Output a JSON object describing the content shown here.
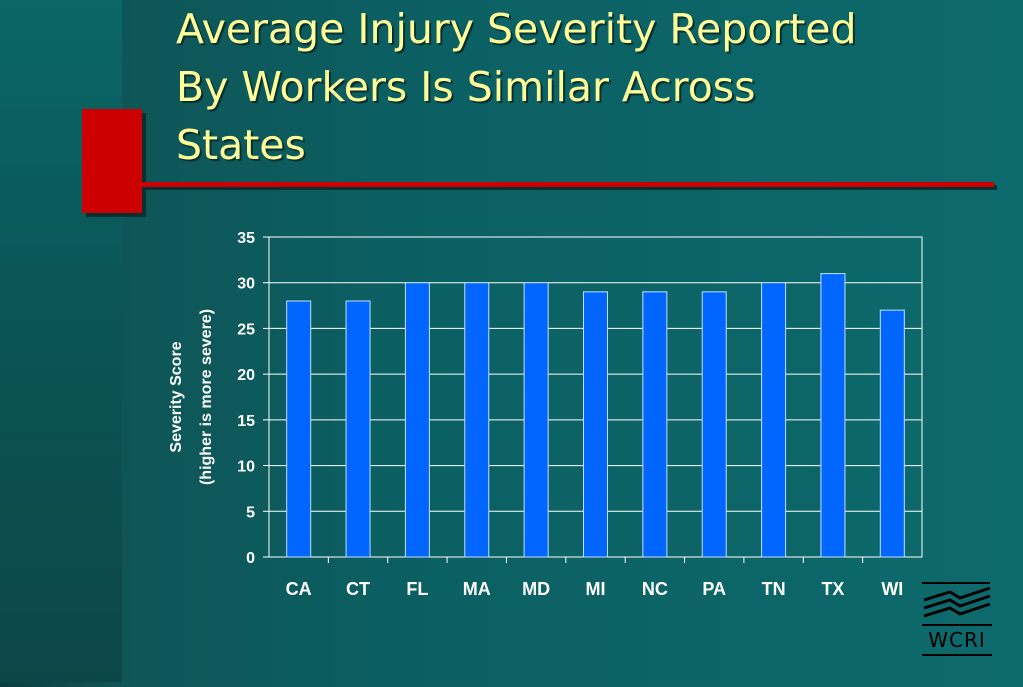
{
  "slide": {
    "title": "Average Injury Severity Reported\nBy Workers Is Similar Across\nStates"
  },
  "logo": {
    "text": "WCRI"
  },
  "colors": {
    "bar": "#0066ff",
    "title": "#ffff99",
    "accent": "#cc0000"
  },
  "chart_data": {
    "type": "bar",
    "title": "",
    "xlabel": "",
    "ylabel_line1": "Severity Score",
    "ylabel_line2": "(higher is more severe)",
    "categories": [
      "CA",
      "CT",
      "FL",
      "MA",
      "MD",
      "MI",
      "NC",
      "PA",
      "TN",
      "TX",
      "WI"
    ],
    "values": [
      28,
      28,
      30,
      30,
      30,
      29,
      29,
      29,
      30,
      31,
      27
    ],
    "ylim": [
      0,
      35
    ],
    "yticks": [
      "0",
      "5",
      "10",
      "15",
      "20",
      "25",
      "30",
      "35"
    ],
    "grid": true
  }
}
